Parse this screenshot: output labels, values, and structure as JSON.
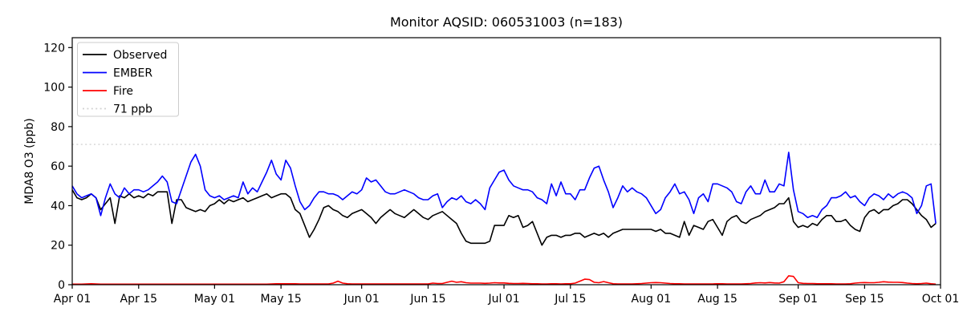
{
  "title": "Monitor AQSID: 060531003 (n=183)",
  "legend": [
    {
      "label": "Observed",
      "color": "#000000",
      "dash": ""
    },
    {
      "label": "EMBER",
      "color": "#0000ff",
      "dash": ""
    },
    {
      "label": "Fire",
      "color": "#ff0000",
      "dash": ""
    },
    {
      "label": "71 ppb",
      "color": "#d3d3d3",
      "dash": "2 3.4"
    }
  ],
  "axes": {
    "ylabel": "MDA8 O3 (ppb)",
    "yticks": [
      0,
      20,
      40,
      60,
      80,
      100,
      120
    ],
    "xticks": [
      {
        "label": "Apr 01",
        "day": 0
      },
      {
        "label": "Apr 15",
        "day": 14
      },
      {
        "label": "May 01",
        "day": 30
      },
      {
        "label": "May 15",
        "day": 44
      },
      {
        "label": "Jun 01",
        "day": 61
      },
      {
        "label": "Jun 15",
        "day": 75
      },
      {
        "label": "Jul 01",
        "day": 91
      },
      {
        "label": "Jul 15",
        "day": 105
      },
      {
        "label": "Aug 01",
        "day": 122
      },
      {
        "label": "Aug 15",
        "day": 136
      },
      {
        "label": "Sep 01",
        "day": 153
      },
      {
        "label": "Sep 15",
        "day": 167
      },
      {
        "label": "Oct 01",
        "day": 183
      }
    ]
  },
  "chart_data": {
    "type": "line",
    "title": "Monitor AQSID: 060531003 (n=183)",
    "xlabel": "",
    "ylabel": "MDA8 O3 (ppb)",
    "n": 183,
    "x_range_days": [
      "Apr 01",
      "Oct 01"
    ],
    "ylim": [
      0,
      125
    ],
    "grid": false,
    "legend_position": "upper left",
    "threshold": {
      "label": "71 ppb",
      "value": 71,
      "color": "#d3d3d3",
      "style": "dotted"
    },
    "series": [
      {
        "name": "Observed",
        "color": "#000000",
        "values": [
          48,
          44,
          43,
          44,
          46,
          44,
          38,
          41,
          44,
          31,
          45,
          44,
          46,
          44,
          45,
          44,
          46,
          45,
          47,
          47,
          47,
          31,
          43,
          43,
          39,
          38,
          37,
          38,
          37,
          40,
          41,
          43,
          41,
          43,
          42,
          43,
          44,
          42,
          43,
          44,
          45,
          46,
          44,
          45,
          46,
          46,
          44,
          38,
          36,
          30,
          24,
          28,
          33,
          39,
          40,
          38,
          37,
          35,
          34,
          36,
          37,
          38,
          36,
          34,
          31,
          34,
          36,
          38,
          36,
          35,
          34,
          36,
          38,
          36,
          34,
          33,
          35,
          36,
          37,
          35,
          33,
          31,
          26,
          22,
          21,
          21,
          21,
          21,
          22,
          30,
          30,
          30,
          35,
          34,
          35,
          29,
          30,
          32,
          26,
          20,
          24,
          25,
          25,
          24,
          25,
          25,
          26,
          26,
          24,
          25,
          26,
          25,
          26,
          24,
          26,
          27,
          28,
          28,
          28,
          28,
          28,
          28,
          28,
          27,
          28,
          26,
          26,
          25,
          24,
          32,
          25,
          30,
          29,
          28,
          32,
          33,
          29,
          25,
          32,
          34,
          35,
          32,
          31,
          33,
          34,
          35,
          37,
          38,
          39,
          41,
          41,
          44,
          32,
          29,
          30,
          29,
          31,
          30,
          33,
          35,
          35,
          32,
          32,
          33,
          30,
          28,
          27,
          34,
          37,
          38,
          36,
          38,
          38,
          40,
          41,
          43,
          43,
          41,
          38,
          35,
          33,
          29,
          31
        ]
      },
      {
        "name": "EMBER",
        "color": "#0000ff",
        "values": [
          50,
          46,
          44,
          45,
          46,
          44,
          35,
          44,
          51,
          46,
          44,
          49,
          46,
          48,
          48,
          47,
          48,
          50,
          52,
          55,
          52,
          42,
          41,
          48,
          55,
          62,
          66,
          60,
          48,
          45,
          44,
          45,
          43,
          44,
          45,
          44,
          52,
          46,
          49,
          47,
          52,
          57,
          63,
          56,
          53,
          63,
          59,
          50,
          42,
          38,
          40,
          44,
          47,
          47,
          46,
          46,
          45,
          43,
          45,
          47,
          46,
          48,
          54,
          52,
          53,
          50,
          47,
          46,
          46,
          47,
          48,
          47,
          46,
          44,
          43,
          43,
          45,
          46,
          39,
          42,
          44,
          43,
          45,
          42,
          41,
          43,
          41,
          38,
          49,
          53,
          57,
          58,
          53,
          50,
          49,
          48,
          48,
          47,
          44,
          43,
          41,
          51,
          45,
          52,
          46,
          46,
          43,
          48,
          48,
          54,
          59,
          60,
          53,
          47,
          39,
          44,
          50,
          47,
          49,
          47,
          46,
          44,
          40,
          36,
          38,
          44,
          47,
          51,
          46,
          47,
          43,
          36,
          44,
          46,
          42,
          51,
          51,
          50,
          49,
          47,
          42,
          41,
          47,
          50,
          46,
          46,
          53,
          47,
          47,
          51,
          50,
          67,
          48,
          37,
          36,
          34,
          35,
          34,
          38,
          40,
          44,
          44,
          45,
          47,
          44,
          45,
          42,
          40,
          44,
          46,
          45,
          43,
          46,
          44,
          46,
          47,
          46,
          44,
          36,
          40,
          50,
          51,
          31
        ]
      },
      {
        "name": "Fire",
        "color": "#ff0000",
        "values": [
          0.3,
          0.3,
          0.3,
          0.4,
          0.5,
          0.4,
          0.3,
          0.3,
          0.3,
          0.3,
          0.3,
          0.3,
          0.3,
          0.3,
          0.3,
          0.3,
          0.3,
          0.3,
          0.3,
          0.3,
          0.3,
          0.3,
          0.3,
          0.3,
          0.3,
          0.3,
          0.3,
          0.3,
          0.3,
          0.3,
          0.3,
          0.3,
          0.3,
          0.3,
          0.3,
          0.3,
          0.3,
          0.3,
          0.3,
          0.3,
          0.3,
          0.3,
          0.4,
          0.5,
          0.5,
          0.5,
          0.5,
          0.5,
          0.4,
          0.4,
          0.4,
          0.4,
          0.4,
          0.4,
          0.4,
          0.8,
          1.8,
          0.8,
          0.5,
          0.4,
          0.4,
          0.4,
          0.4,
          0.4,
          0.4,
          0.4,
          0.4,
          0.4,
          0.4,
          0.4,
          0.4,
          0.4,
          0.4,
          0.4,
          0.4,
          0.4,
          0.8,
          0.6,
          0.6,
          1.2,
          1.8,
          1.2,
          1.5,
          1.0,
          0.8,
          0.8,
          0.8,
          0.7,
          0.8,
          1.0,
          0.9,
          0.9,
          0.7,
          0.6,
          0.6,
          0.7,
          0.6,
          0.5,
          0.5,
          0.4,
          0.4,
          0.5,
          0.5,
          0.4,
          0.5,
          0.5,
          0.8,
          1.8,
          2.8,
          2.6,
          1.2,
          1.0,
          1.6,
          1.0,
          0.5,
          0.4,
          0.4,
          0.4,
          0.4,
          0.5,
          0.6,
          0.8,
          1.0,
          1.1,
          1.0,
          0.8,
          0.6,
          0.5,
          0.5,
          0.4,
          0.4,
          0.4,
          0.4,
          0.4,
          0.4,
          0.4,
          0.5,
          0.5,
          0.4,
          0.4,
          0.4,
          0.4,
          0.5,
          0.6,
          0.9,
          1.0,
          0.9,
          1.1,
          0.9,
          0.8,
          1.5,
          4.5,
          4.2,
          1.0,
          0.7,
          0.6,
          0.6,
          0.5,
          0.5,
          0.5,
          0.5,
          0.4,
          0.4,
          0.4,
          0.5,
          0.8,
          1.0,
          1.1,
          1.0,
          1.0,
          1.2,
          1.5,
          1.3,
          1.2,
          1.2,
          1.1,
          0.8,
          0.6,
          0.5,
          0.6,
          0.8,
          0.5,
          0.3
        ]
      }
    ]
  }
}
